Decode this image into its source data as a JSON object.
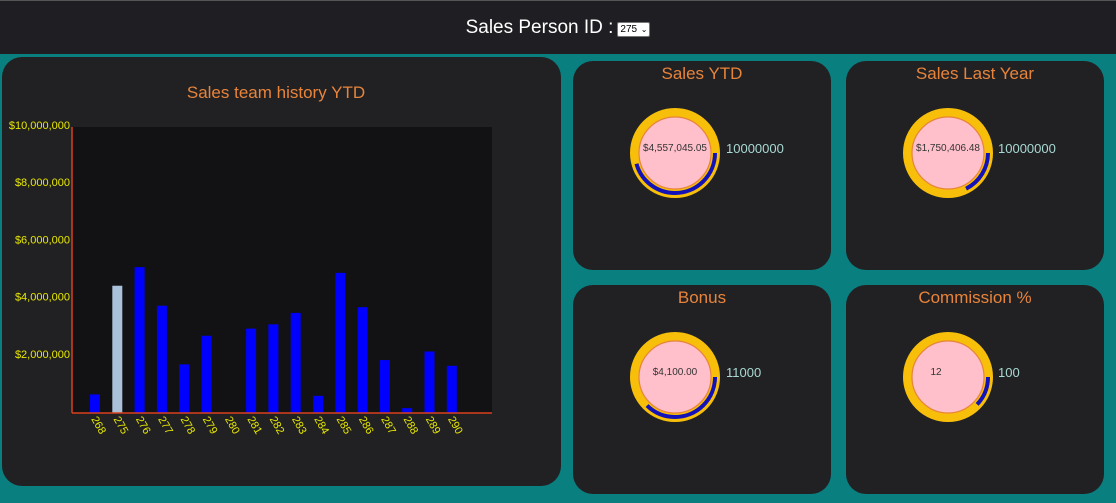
{
  "header": {
    "label": "Sales Person ID :",
    "selected_id": "275"
  },
  "chart_data": {
    "type": "bar",
    "title": "Sales team history YTD",
    "xlabel": "",
    "ylabel": "",
    "ylim": [
      0,
      10000000
    ],
    "yticks": [
      2000000,
      4000000,
      6000000,
      8000000,
      10000000
    ],
    "ytick_labels": [
      "$2,000,000",
      "$4,000,000",
      "$6,000,000",
      "$8,000,000",
      "$10,000,000"
    ],
    "categories": [
      "268",
      "275",
      "276",
      "277",
      "278",
      "279",
      "280",
      "281",
      "282",
      "283",
      "284",
      "285",
      "286",
      "287",
      "288",
      "289",
      "290"
    ],
    "values": [
      650000,
      4450000,
      5100000,
      3750000,
      1700000,
      2700000,
      0,
      2950000,
      3100000,
      3500000,
      600000,
      4900000,
      3700000,
      1850000,
      170000,
      2150000,
      1650000
    ],
    "highlighted": "275",
    "colors": {
      "bar": "#0000ff",
      "highlight": "#a9c1d9",
      "axis": "#d9401c",
      "tick_text": "#e8e800",
      "plot_bg": "#121215"
    }
  },
  "cards": [
    {
      "title": "Sales YTD",
      "value_label": "$4,557,045.05",
      "max_label": "10000000",
      "fraction": 0.4557
    },
    {
      "title": "Sales Last Year",
      "value_label": "$1,750,406.48",
      "max_label": "10000000",
      "fraction": 0.175
    },
    {
      "title": "Bonus",
      "value_label": "$4,100.00",
      "max_label": "11000",
      "fraction": 0.3727
    },
    {
      "title": "Commission %",
      "value_label": "12",
      "max_label": "100",
      "fraction": 0.12
    }
  ],
  "colors": {
    "gauge_track": "#f7be0a",
    "gauge_fill": "#1212b8",
    "gauge_inner": "#ffc0cb",
    "gauge_ring": "#e8843a"
  }
}
